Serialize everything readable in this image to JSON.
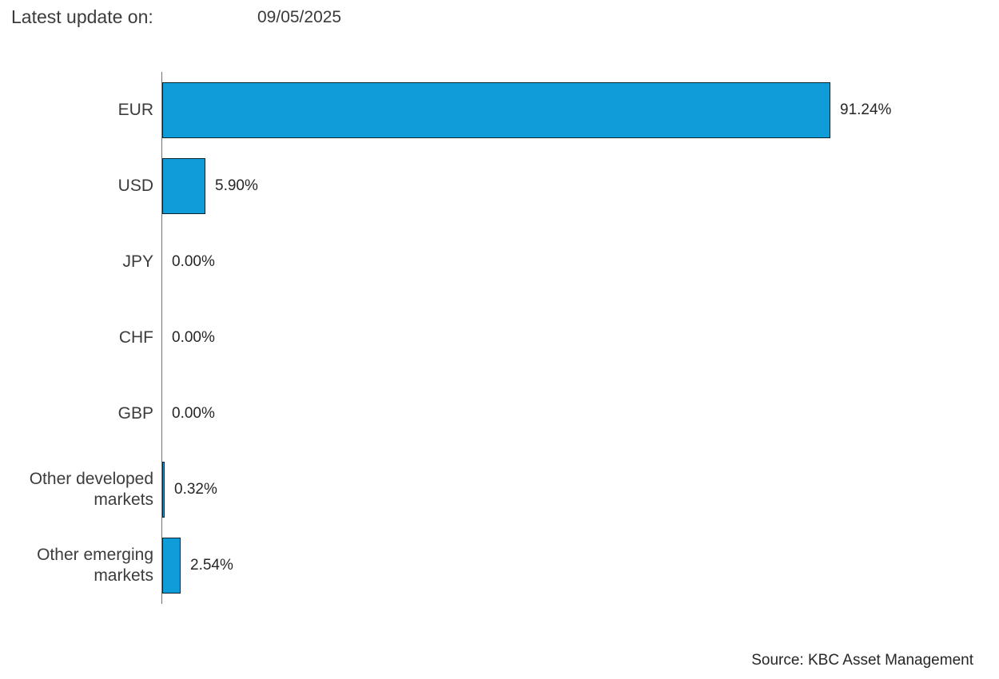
{
  "header": {
    "label": "Latest update on:",
    "date": "09/05/2025"
  },
  "source": "Source: KBC Asset Management",
  "chart_data": {
    "type": "bar",
    "orientation": "horizontal",
    "title": "",
    "xlabel": "",
    "ylabel": "",
    "xlim": [
      0,
      100
    ],
    "grid": false,
    "legend": false,
    "bar_color": "#0f9cd8",
    "bar_border_color": "#0a2530",
    "categories": [
      "EUR",
      "USD",
      "JPY",
      "CHF",
      "GBP",
      "Other developed markets",
      "Other emerging markets"
    ],
    "values": [
      91.24,
      5.9,
      0.0,
      0.0,
      0.0,
      0.32,
      2.54
    ],
    "value_labels": [
      "91.24%",
      "5.90%",
      "0.00%",
      "0.00%",
      "0.00%",
      "0.32%",
      "2.54%"
    ]
  }
}
